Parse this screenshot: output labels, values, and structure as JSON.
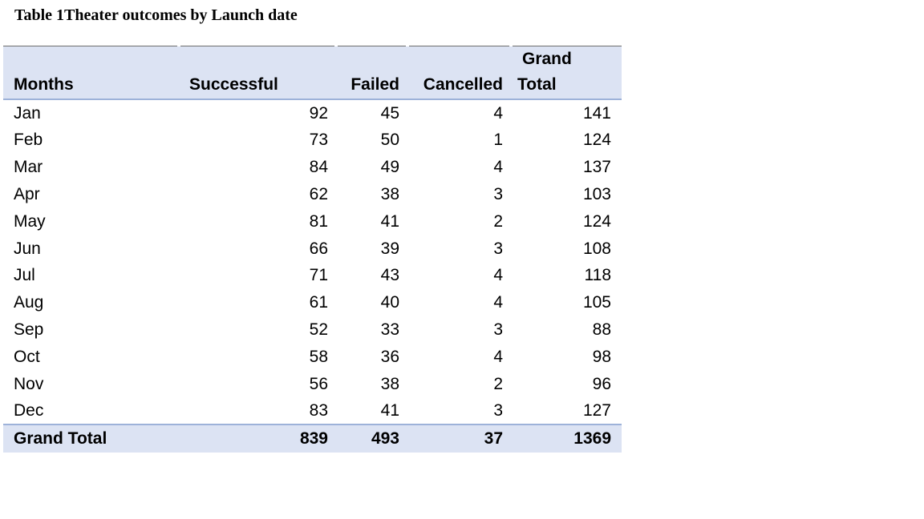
{
  "caption": "Table 1Theater outcomes by Launch date",
  "headers": {
    "months": "Months",
    "successful": "Successful",
    "failed": "Failed",
    "cancelled": "Cancelled",
    "grand_total_line1": "Grand",
    "grand_total_line2": "Total"
  },
  "rows": [
    {
      "month": "Jan",
      "successful": "92",
      "failed": "45",
      "cancelled": "4",
      "total": "141"
    },
    {
      "month": "Feb",
      "successful": "73",
      "failed": "50",
      "cancelled": "1",
      "total": "124"
    },
    {
      "month": "Mar",
      "successful": "84",
      "failed": "49",
      "cancelled": "4",
      "total": "137"
    },
    {
      "month": "Apr",
      "successful": "62",
      "failed": "38",
      "cancelled": "3",
      "total": "103"
    },
    {
      "month": "May",
      "successful": "81",
      "failed": "41",
      "cancelled": "2",
      "total": "124"
    },
    {
      "month": "Jun",
      "successful": "66",
      "failed": "39",
      "cancelled": "3",
      "total": "108"
    },
    {
      "month": "Jul",
      "successful": "71",
      "failed": "43",
      "cancelled": "4",
      "total": "118"
    },
    {
      "month": "Aug",
      "successful": "61",
      "failed": "40",
      "cancelled": "4",
      "total": "105"
    },
    {
      "month": "Sep",
      "successful": "52",
      "failed": "33",
      "cancelled": "3",
      "total": "88"
    },
    {
      "month": "Oct",
      "successful": "58",
      "failed": "36",
      "cancelled": "4",
      "total": "98"
    },
    {
      "month": "Nov",
      "successful": "56",
      "failed": "38",
      "cancelled": "2",
      "total": "96"
    },
    {
      "month": "Dec",
      "successful": "83",
      "failed": "41",
      "cancelled": "3",
      "total": "127"
    }
  ],
  "grand_total": {
    "label": "Grand Total",
    "successful": "839",
    "failed": "493",
    "cancelled": "37",
    "total": "1369"
  },
  "colors": {
    "header_fill": "#dce3f3",
    "header_rule": "#9db2d9"
  }
}
